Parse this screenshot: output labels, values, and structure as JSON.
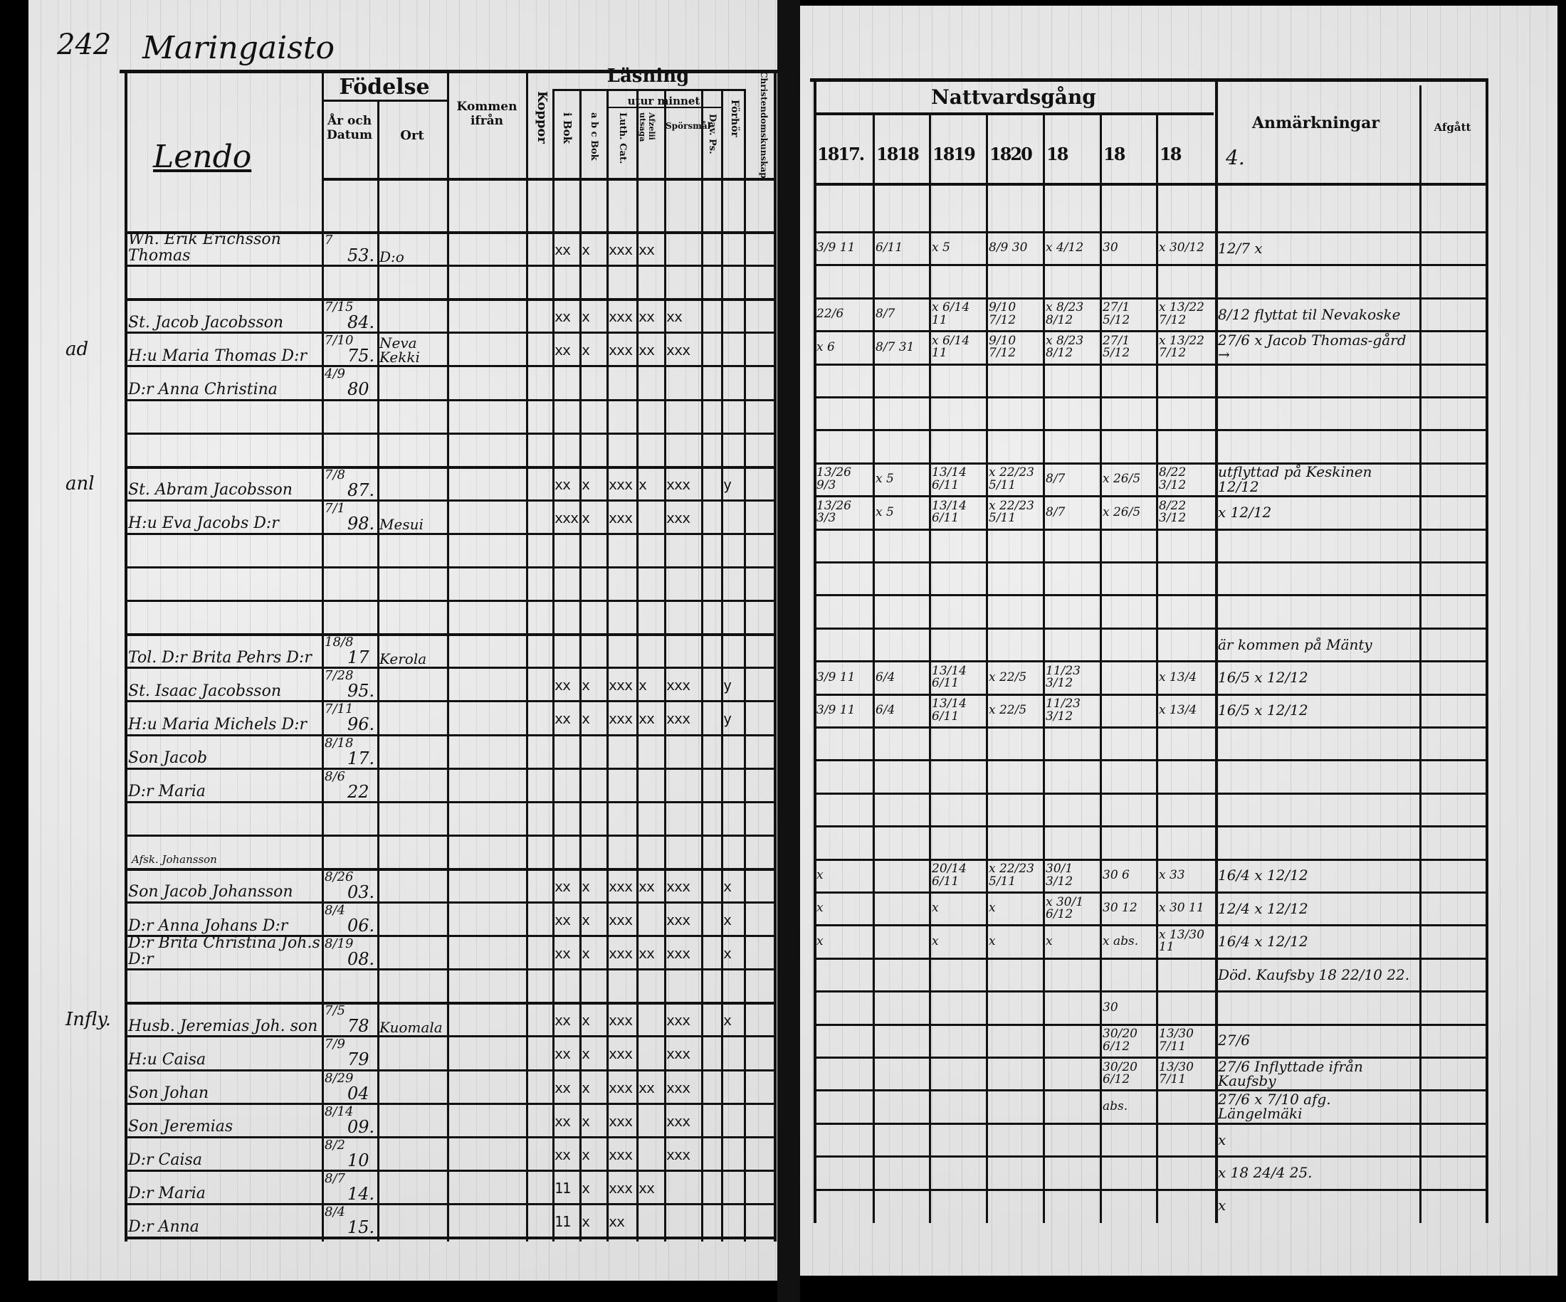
{
  "left_page": {
    "page_number": "242",
    "parish": "Maringaisto",
    "village": "Lendo",
    "headers": {
      "fodelse": "Födelse",
      "ar_och_datum": "År och Datum",
      "ort": "Ort",
      "kommen_ifran": "Kommen ifrån",
      "koppor": "Koppor",
      "lasning": "Läsning",
      "utur_minnet": "utur minnet",
      "i_bok": "i Bok",
      "abc_bok": "a b c Bok",
      "luth_cat": "Luth. Cat.",
      "afzelii": "Afzelii utsaga",
      "sporsmal": "Spörsmål",
      "dav_ps": "Dav. Ps.",
      "forhor": "Förhör",
      "kunskap": "Christendomskunskap"
    },
    "margin_notes": [
      {
        "row": 3,
        "text": "ad"
      },
      {
        "row": 7,
        "text": "anl"
      },
      {
        "row": 23,
        "text": "Infly."
      }
    ],
    "rows": [
      {
        "name": "Wh. Erik Erichsson Thomas",
        "date": "7",
        "year": "53.",
        "ort": "D:o",
        "from": "",
        "reading": [
          "xx",
          "x",
          "xxx",
          "xx",
          "",
          "",
          ""
        ]
      },
      {
        "name": "",
        "date": "",
        "year": "",
        "ort": "",
        "from": "",
        "reading": []
      },
      {
        "name": "St. Jacob Jacobsson",
        "date": "7/15",
        "year": "84.",
        "ort": "",
        "from": "",
        "reading": [
          "xx",
          "x",
          "xxx",
          "xx",
          "xx",
          "",
          ""
        ]
      },
      {
        "name": "H:u Maria Thomas D:r",
        "date": "7/10",
        "year": "75.",
        "ort": "Neva Kekki",
        "from": "",
        "reading": [
          "xx",
          "x",
          "xxx",
          "xx",
          "xxx",
          "",
          ""
        ]
      },
      {
        "name": "D:r Anna Christina",
        "date": "4/9",
        "year": "80",
        "ort": "",
        "from": "",
        "reading": []
      },
      {
        "name": "",
        "date": "",
        "year": "",
        "ort": "",
        "from": "",
        "reading": []
      },
      {
        "name": "",
        "date": "",
        "year": "",
        "ort": "",
        "from": "",
        "reading": []
      },
      {
        "name": "St. Abram Jacobsson",
        "date": "7/8",
        "year": "87.",
        "ort": "",
        "from": "",
        "reading": [
          "xx",
          "x",
          "xxx",
          "x",
          "xxx",
          "",
          "y"
        ]
      },
      {
        "name": "H:u Eva Jacobs D:r",
        "date": "7/1",
        "year": "98.",
        "ort": "Mesui",
        "from": "",
        "reading": [
          "xxx",
          "x",
          "xxx",
          "",
          "xxx",
          "",
          ""
        ]
      },
      {
        "name": "",
        "date": "",
        "year": "",
        "ort": "",
        "from": "",
        "reading": []
      },
      {
        "name": "",
        "date": "",
        "year": "",
        "ort": "",
        "from": "",
        "reading": []
      },
      {
        "name": "",
        "date": "",
        "year": "",
        "ort": "",
        "from": "",
        "reading": []
      },
      {
        "name": "Tol. D:r Brita Pehrs D:r",
        "date": "18/8",
        "year": "17",
        "ort": "Kerola",
        "from": "",
        "reading": []
      },
      {
        "name": "St. Isaac Jacobsson",
        "date": "7/28",
        "year": "95.",
        "ort": "",
        "from": "",
        "reading": [
          "xx",
          "x",
          "xxx",
          "x",
          "xxx",
          "",
          "y"
        ]
      },
      {
        "name": "H:u Maria Michels D:r",
        "date": "7/11",
        "year": "96.",
        "ort": "",
        "from": "",
        "reading": [
          "xx",
          "x",
          "xxx",
          "xx",
          "xxx",
          "",
          "y"
        ]
      },
      {
        "name": "Son Jacob",
        "date": "8/18",
        "year": "17.",
        "ort": "",
        "from": "",
        "reading": []
      },
      {
        "name": "D:r Maria",
        "date": "8/6",
        "year": "22",
        "ort": "",
        "from": "",
        "reading": []
      },
      {
        "name": "",
        "date": "",
        "year": "",
        "ort": "",
        "from": "",
        "reading": []
      },
      {
        "name": "",
        "date": "",
        "year": "",
        "ort": "",
        "from": "",
        "reading": []
      },
      {
        "name": "Son Jacob Johansson",
        "date": "8/26",
        "year": "03.",
        "ort": "",
        "from": "",
        "note": "Afsk. Johansson",
        "reading": [
          "xx",
          "x",
          "xxx",
          "xx",
          "xxx",
          "",
          "x"
        ]
      },
      {
        "name": "D:r Anna Johans D:r",
        "date": "8/4",
        "year": "06.",
        "ort": "",
        "from": "",
        "reading": [
          "xx",
          "x",
          "xxx",
          "",
          "xxx",
          "",
          "x"
        ]
      },
      {
        "name": "D:r Brita Christina Joh.s D:r",
        "date": "8/19",
        "year": "08.",
        "ort": "",
        "from": "",
        "reading": [
          "xx",
          "x",
          "xxx",
          "xx",
          "xxx",
          "",
          "x"
        ]
      },
      {
        "name": "",
        "date": "",
        "year": "",
        "ort": "",
        "from": "",
        "reading": []
      },
      {
        "name": "Husb. Jeremias Joh. son",
        "date": "7/5",
        "year": "78",
        "ort": "Kuomala",
        "from": "",
        "reading": [
          "xx",
          "x",
          "xxx",
          "",
          "xxx",
          "",
          "x"
        ]
      },
      {
        "name": "H:u Caisa",
        "date": "7/9",
        "year": "79",
        "ort": "",
        "from": "",
        "reading": [
          "xx",
          "x",
          "xxx",
          "",
          "xxx",
          "",
          ""
        ]
      },
      {
        "name": "Son Johan",
        "date": "8/29",
        "year": "04",
        "ort": "",
        "from": "",
        "reading": [
          "xx",
          "x",
          "xxx",
          "xx",
          "xxx",
          "",
          ""
        ]
      },
      {
        "name": "Son Jeremias",
        "date": "8/14",
        "year": "09.",
        "ort": "",
        "from": "",
        "reading": [
          "xx",
          "x",
          "xxx",
          "",
          "xxx",
          "",
          ""
        ]
      },
      {
        "name": "D:r Caisa",
        "date": "8/2",
        "year": "10",
        "ort": "",
        "from": "",
        "reading": [
          "xx",
          "x",
          "xxx",
          "",
          "xxx",
          "",
          ""
        ]
      },
      {
        "name": "D:r Maria",
        "date": "8/7",
        "year": "14.",
        "ort": "",
        "from": "",
        "reading": [
          "11",
          "x",
          "xxx",
          "xx",
          "",
          "",
          ""
        ]
      },
      {
        "name": "D:r Anna",
        "date": "8/4",
        "year": "15.",
        "ort": "",
        "from": "",
        "reading": [
          "11",
          "x",
          "xx",
          "",
          "",
          "",
          ""
        ]
      }
    ]
  },
  "right_page": {
    "headers": {
      "nattvardsgang": "Nattvardsgång",
      "years": [
        "1817.",
        "1818",
        "1819",
        "1820",
        "18",
        "18",
        "18"
      ],
      "extra_year": "4.",
      "anmarkningar": "Anmärkningar",
      "afgatt": "Afgått"
    },
    "rows": [
      {
        "nv": [
          "3/9 11",
          "6/11",
          "x 5",
          "8/9 30",
          "x 4/12",
          "30",
          "x 30/12"
        ],
        "remark": "12/7 x",
        "afgatt": ""
      },
      {
        "nv": [],
        "remark": "",
        "afgatt": ""
      },
      {
        "nv": [
          "22/6",
          "8/7",
          "x 6/14 11",
          "9/10 7/12",
          "x 8/23 8/12",
          "27/1 5/12",
          "x 13/22 7/12"
        ],
        "remark": "8/12 flyttat til Nevakoske",
        "afgatt": ""
      },
      {
        "nv": [
          "x 6",
          "8/7 31",
          "x 6/14 11",
          "9/10 7/12",
          "x 8/23 8/12",
          "27/1 5/12",
          "x 13/22 7/12"
        ],
        "remark": "27/6 x  Jacob Thomas-gård →",
        "afgatt": ""
      },
      {
        "nv": [],
        "remark": "",
        "afgatt": ""
      },
      {
        "nv": [],
        "remark": "",
        "afgatt": ""
      },
      {
        "nv": [],
        "remark": "",
        "afgatt": ""
      },
      {
        "nv": [
          "13/26 9/3",
          "x 5",
          "13/14 6/11",
          "x 22/23 5/11",
          "8/7",
          "x 26/5",
          "8/22 3/12"
        ],
        "remark": "utflyttad på Keskinen  12/12",
        "afgatt": ""
      },
      {
        "nv": [
          "13/26 3/3",
          "x 5",
          "13/14 6/11",
          "x 22/23 5/11",
          "8/7",
          "x 26/5",
          "8/22 3/12"
        ],
        "remark": "x  12/12",
        "afgatt": ""
      },
      {
        "nv": [],
        "remark": "",
        "afgatt": ""
      },
      {
        "nv": [],
        "remark": "",
        "afgatt": ""
      },
      {
        "nv": [],
        "remark": "",
        "afgatt": ""
      },
      {
        "nv": [],
        "remark": "är kommen på Mänty",
        "afgatt": ""
      },
      {
        "nv": [
          "3/9 11",
          "6/4",
          "13/14 6/11",
          "x 22/5",
          "11/23 3/12",
          "",
          "x 13/4"
        ],
        "remark": "16/5 x 12/12",
        "afgatt": ""
      },
      {
        "nv": [
          "3/9 11",
          "6/4",
          "13/14 6/11",
          "x 22/5",
          "11/23 3/12",
          "",
          "x 13/4"
        ],
        "remark": "16/5 x 12/12",
        "afgatt": ""
      },
      {
        "nv": [],
        "remark": "",
        "afgatt": ""
      },
      {
        "nv": [],
        "remark": "",
        "afgatt": ""
      },
      {
        "nv": [],
        "remark": "",
        "afgatt": ""
      },
      {
        "nv": [],
        "remark": "",
        "afgatt": ""
      },
      {
        "nv": [
          "x",
          "",
          "20/14 6/11",
          "x 22/23 5/11",
          "30/1 3/12",
          "30 6",
          "x 33"
        ],
        "remark": "16/4 x 12/12",
        "afgatt": ""
      },
      {
        "nv": [
          "x",
          "",
          "x",
          "x",
          "x 30/1 6/12",
          "30 12",
          "x 30 11"
        ],
        "remark": "12/4 x 12/12",
        "afgatt": ""
      },
      {
        "nv": [
          "x",
          "",
          "x",
          "x",
          "x",
          "x abs.",
          "x 13/30 11"
        ],
        "remark": "16/4 x 12/12",
        "afgatt": ""
      },
      {
        "nv": [],
        "remark": "Död. Kaufsby 18 22/10 22.",
        "afgatt": ""
      },
      {
        "nv": [
          "",
          "",
          "",
          "",
          "",
          "30",
          ""
        ],
        "remark": "",
        "afgatt": ""
      },
      {
        "nv": [
          "",
          "",
          "",
          "",
          "",
          "30/20 6/12",
          "13/30 7/11"
        ],
        "remark": "27/6",
        "afgatt": ""
      },
      {
        "nv": [
          "",
          "",
          "",
          "",
          "",
          "30/20 6/12",
          "13/30 7/11"
        ],
        "remark": "27/6 Inflyttade ifrån Kaufsby",
        "afgatt": ""
      },
      {
        "nv": [
          "",
          "",
          "",
          "",
          "",
          "abs.",
          ""
        ],
        "remark": "27/6 x 7/10  afg. Längelmäki",
        "afgatt": ""
      },
      {
        "nv": [],
        "remark": "x",
        "afgatt": ""
      },
      {
        "nv": [],
        "remark": "x  18 24/4 25.",
        "afgatt": ""
      },
      {
        "nv": [],
        "remark": "x",
        "afgatt": ""
      }
    ]
  }
}
